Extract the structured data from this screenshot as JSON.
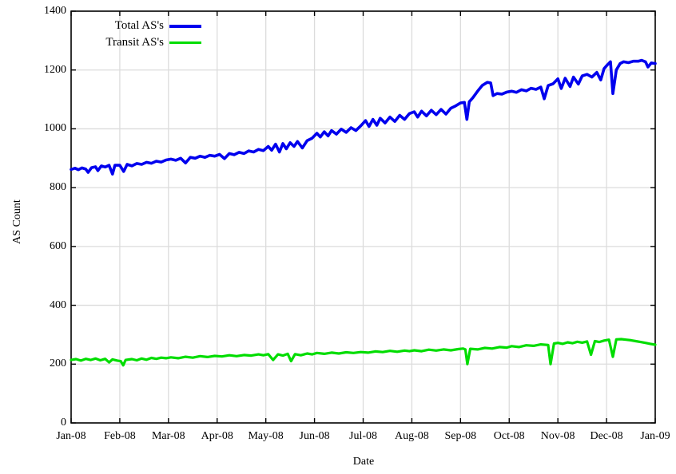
{
  "chart_data": {
    "type": "line",
    "title": "",
    "xlabel": "Date",
    "ylabel": "AS Count",
    "xlim": [
      0,
      12
    ],
    "ylim": [
      0,
      1400
    ],
    "grid": true,
    "background_color": "#ffffff",
    "axis_color": "#000000",
    "grid_color": "#dcdcdc",
    "legend_position": "top-left-inside",
    "x_tick_labels": [
      "Jan-08",
      "Feb-08",
      "Mar-08",
      "Apr-08",
      "May-08",
      "Jun-08",
      "Jul-08",
      "Aug-08",
      "Sep-08",
      "Oct-08",
      "Nov-08",
      "Dec-08",
      "Jan-09"
    ],
    "y_tick_labels": [
      "0",
      "200",
      "400",
      "600",
      "800",
      "1000",
      "1200",
      "1400"
    ],
    "y_tick_values": [
      0,
      200,
      400,
      600,
      800,
      1000,
      1200,
      1400
    ],
    "series": [
      {
        "name": "Total AS's",
        "color": "#0000ee",
        "line_width": 3.6,
        "points": [
          [
            0,
            862
          ],
          [
            0.08,
            866
          ],
          [
            0.15,
            861
          ],
          [
            0.22,
            867
          ],
          [
            0.3,
            863
          ],
          [
            0.35,
            852
          ],
          [
            0.42,
            868
          ],
          [
            0.5,
            871
          ],
          [
            0.55,
            858
          ],
          [
            0.62,
            874
          ],
          [
            0.7,
            870
          ],
          [
            0.78,
            876
          ],
          [
            0.85,
            846
          ],
          [
            0.9,
            876
          ],
          [
            1,
            876
          ],
          [
            1.08,
            855
          ],
          [
            1.15,
            879
          ],
          [
            1.25,
            874
          ],
          [
            1.35,
            882
          ],
          [
            1.45,
            879
          ],
          [
            1.55,
            886
          ],
          [
            1.65,
            883
          ],
          [
            1.75,
            890
          ],
          [
            1.85,
            887
          ],
          [
            1.95,
            894
          ],
          [
            2.05,
            897
          ],
          [
            2.15,
            893
          ],
          [
            2.25,
            900
          ],
          [
            2.35,
            884
          ],
          [
            2.45,
            903
          ],
          [
            2.55,
            900
          ],
          [
            2.65,
            907
          ],
          [
            2.75,
            903
          ],
          [
            2.85,
            910
          ],
          [
            2.95,
            907
          ],
          [
            3.05,
            913
          ],
          [
            3.15,
            899
          ],
          [
            3.25,
            916
          ],
          [
            3.35,
            912
          ],
          [
            3.45,
            920
          ],
          [
            3.55,
            916
          ],
          [
            3.65,
            925
          ],
          [
            3.75,
            921
          ],
          [
            3.85,
            930
          ],
          [
            3.95,
            926
          ],
          [
            4.05,
            940
          ],
          [
            4.12,
            927
          ],
          [
            4.2,
            948
          ],
          [
            4.28,
            921
          ],
          [
            4.35,
            950
          ],
          [
            4.42,
            932
          ],
          [
            4.5,
            953
          ],
          [
            4.58,
            940
          ],
          [
            4.65,
            957
          ],
          [
            4.75,
            935
          ],
          [
            4.85,
            960
          ],
          [
            4.95,
            968
          ],
          [
            5.05,
            985
          ],
          [
            5.12,
            972
          ],
          [
            5.2,
            990
          ],
          [
            5.28,
            976
          ],
          [
            5.35,
            994
          ],
          [
            5.45,
            982
          ],
          [
            5.55,
            999
          ],
          [
            5.65,
            988
          ],
          [
            5.75,
            1004
          ],
          [
            5.85,
            994
          ],
          [
            5.95,
            1010
          ],
          [
            6.05,
            1028
          ],
          [
            6.12,
            1008
          ],
          [
            6.2,
            1032
          ],
          [
            6.28,
            1012
          ],
          [
            6.35,
            1036
          ],
          [
            6.45,
            1020
          ],
          [
            6.55,
            1040
          ],
          [
            6.65,
            1025
          ],
          [
            6.75,
            1046
          ],
          [
            6.85,
            1032
          ],
          [
            6.95,
            1052
          ],
          [
            7.05,
            1058
          ],
          [
            7.12,
            1040
          ],
          [
            7.2,
            1060
          ],
          [
            7.3,
            1044
          ],
          [
            7.4,
            1063
          ],
          [
            7.5,
            1048
          ],
          [
            7.6,
            1066
          ],
          [
            7.7,
            1050
          ],
          [
            7.8,
            1070
          ],
          [
            7.9,
            1078
          ],
          [
            8,
            1088
          ],
          [
            8.08,
            1090
          ],
          [
            8.13,
            1032
          ],
          [
            8.18,
            1092
          ],
          [
            8.25,
            1105
          ],
          [
            8.35,
            1128
          ],
          [
            8.45,
            1148
          ],
          [
            8.55,
            1158
          ],
          [
            8.62,
            1156
          ],
          [
            8.67,
            1113
          ],
          [
            8.75,
            1120
          ],
          [
            8.85,
            1118
          ],
          [
            8.95,
            1125
          ],
          [
            9.05,
            1128
          ],
          [
            9.15,
            1124
          ],
          [
            9.25,
            1133
          ],
          [
            9.35,
            1129
          ],
          [
            9.45,
            1138
          ],
          [
            9.55,
            1134
          ],
          [
            9.65,
            1142
          ],
          [
            9.72,
            1102
          ],
          [
            9.8,
            1147
          ],
          [
            9.9,
            1153
          ],
          [
            10,
            1170
          ],
          [
            10.07,
            1137
          ],
          [
            10.15,
            1172
          ],
          [
            10.25,
            1144
          ],
          [
            10.32,
            1176
          ],
          [
            10.42,
            1152
          ],
          [
            10.5,
            1180
          ],
          [
            10.6,
            1185
          ],
          [
            10.7,
            1176
          ],
          [
            10.8,
            1192
          ],
          [
            10.88,
            1166
          ],
          [
            10.95,
            1205
          ],
          [
            11.02,
            1218
          ],
          [
            11.08,
            1228
          ],
          [
            11.13,
            1120
          ],
          [
            11.2,
            1200
          ],
          [
            11.28,
            1222
          ],
          [
            11.35,
            1228
          ],
          [
            11.45,
            1225
          ],
          [
            11.55,
            1230
          ],
          [
            11.65,
            1230
          ],
          [
            11.72,
            1233
          ],
          [
            11.8,
            1228
          ],
          [
            11.85,
            1210
          ],
          [
            11.92,
            1224
          ],
          [
            12,
            1222
          ]
        ]
      },
      {
        "name": "Transit AS's",
        "color": "#00dd00",
        "line_width": 3.2,
        "points": [
          [
            0,
            214
          ],
          [
            0.1,
            217
          ],
          [
            0.2,
            212
          ],
          [
            0.3,
            218
          ],
          [
            0.4,
            214
          ],
          [
            0.5,
            219
          ],
          [
            0.6,
            213
          ],
          [
            0.7,
            218
          ],
          [
            0.78,
            206
          ],
          [
            0.85,
            216
          ],
          [
            0.95,
            212
          ],
          [
            1.02,
            210
          ],
          [
            1.07,
            196
          ],
          [
            1.12,
            214
          ],
          [
            1.25,
            217
          ],
          [
            1.35,
            213
          ],
          [
            1.45,
            219
          ],
          [
            1.55,
            215
          ],
          [
            1.65,
            221
          ],
          [
            1.75,
            218
          ],
          [
            1.85,
            222
          ],
          [
            1.95,
            220
          ],
          [
            2.05,
            223
          ],
          [
            2.2,
            220
          ],
          [
            2.35,
            225
          ],
          [
            2.5,
            222
          ],
          [
            2.65,
            227
          ],
          [
            2.8,
            224
          ],
          [
            2.95,
            228
          ],
          [
            3.1,
            226
          ],
          [
            3.25,
            230
          ],
          [
            3.4,
            227
          ],
          [
            3.55,
            231
          ],
          [
            3.7,
            229
          ],
          [
            3.85,
            233
          ],
          [
            3.95,
            230
          ],
          [
            4.05,
            234
          ],
          [
            4.15,
            214
          ],
          [
            4.25,
            233
          ],
          [
            4.35,
            229
          ],
          [
            4.45,
            235
          ],
          [
            4.52,
            210
          ],
          [
            4.6,
            234
          ],
          [
            4.72,
            230
          ],
          [
            4.85,
            236
          ],
          [
            4.95,
            233
          ],
          [
            5.05,
            238
          ],
          [
            5.2,
            235
          ],
          [
            5.35,
            239
          ],
          [
            5.5,
            236
          ],
          [
            5.65,
            240
          ],
          [
            5.8,
            238
          ],
          [
            5.95,
            241
          ],
          [
            6.1,
            239
          ],
          [
            6.25,
            243
          ],
          [
            6.4,
            241
          ],
          [
            6.55,
            245
          ],
          [
            6.7,
            242
          ],
          [
            6.85,
            246
          ],
          [
            6.95,
            244
          ],
          [
            7.05,
            247
          ],
          [
            7.2,
            244
          ],
          [
            7.35,
            249
          ],
          [
            7.5,
            246
          ],
          [
            7.65,
            250
          ],
          [
            7.8,
            247
          ],
          [
            7.95,
            251
          ],
          [
            8.05,
            253
          ],
          [
            8.1,
            250
          ],
          [
            8.14,
            200
          ],
          [
            8.2,
            252
          ],
          [
            8.35,
            250
          ],
          [
            8.5,
            255
          ],
          [
            8.65,
            253
          ],
          [
            8.8,
            258
          ],
          [
            8.95,
            256
          ],
          [
            9.05,
            261
          ],
          [
            9.2,
            258
          ],
          [
            9.35,
            264
          ],
          [
            9.5,
            262
          ],
          [
            9.65,
            267
          ],
          [
            9.8,
            265
          ],
          [
            9.85,
            200
          ],
          [
            9.92,
            270
          ],
          [
            10,
            272
          ],
          [
            10.1,
            269
          ],
          [
            10.2,
            274
          ],
          [
            10.3,
            271
          ],
          [
            10.4,
            276
          ],
          [
            10.5,
            273
          ],
          [
            10.6,
            277
          ],
          [
            10.68,
            232
          ],
          [
            10.76,
            278
          ],
          [
            10.85,
            275
          ],
          [
            10.95,
            280
          ],
          [
            11.05,
            283
          ],
          [
            11.13,
            225
          ],
          [
            11.2,
            284
          ],
          [
            11.3,
            285
          ],
          [
            11.4,
            283
          ],
          [
            11.5,
            281
          ],
          [
            11.6,
            278
          ],
          [
            11.7,
            275
          ],
          [
            11.8,
            272
          ],
          [
            11.9,
            269
          ],
          [
            12,
            266
          ]
        ]
      }
    ],
    "legend": [
      {
        "label": "Total AS's",
        "color": "#0000ee",
        "line_width": 4
      },
      {
        "label": "Transit AS's",
        "color": "#00dd00",
        "line_width": 3.5
      }
    ]
  }
}
